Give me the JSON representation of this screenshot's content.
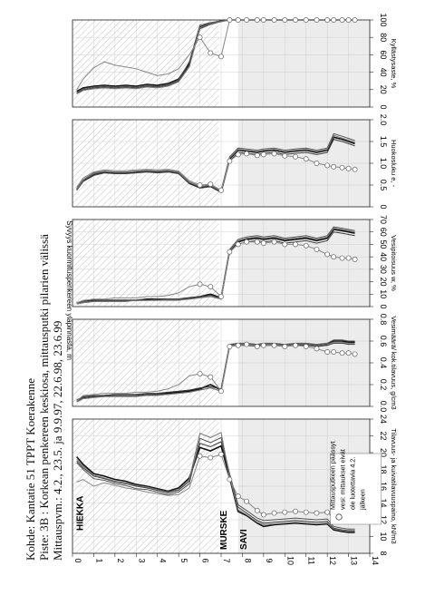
{
  "header": {
    "line1": "Kohde: Kantatie 51 TPPT Koerakenne",
    "line2": "Piste:  3B : Korkean penkereen keskiosa, mittausputki pilarien välissä",
    "line3": "Mittauspvm.: 4.2., 23.5. ja 9.9.97, 22.6.98, 23.6.99"
  },
  "depth_axis": {
    "label": "Syvyys kuormituspenkereen yläpinnasta, m",
    "ticks": [
      "0",
      "1",
      "2",
      "3",
      "4",
      "5",
      "6",
      "7",
      "8",
      "9",
      "10",
      "11",
      "12",
      "13",
      "14"
    ]
  },
  "layer_labels": {
    "hiekka": "HIEKKA",
    "murske": "MURSKE",
    "savi": "SAVI"
  },
  "annotation": [
    "Mittausputkeen päässyt",
    "vesi: mittaukset eivät",
    "ole luotettavia 4.2.",
    "jälkeen"
  ],
  "colors": {
    "series": [
      "#111111",
      "#3a3a3a",
      "#555555",
      "#777777",
      "#999999"
    ],
    "hatch": "#999999",
    "shade": "#ececec"
  },
  "chart_data": [
    {
      "type": "line",
      "xlabel": "Tilavuus- ja kuivatilavuuspaino, kN/m3",
      "xlim": [
        8,
        24
      ],
      "ticks": [
        "8",
        "10",
        "12",
        "14",
        "16",
        "18",
        "20",
        "22",
        "24"
      ],
      "depth": [
        0.2,
        0.5,
        1,
        1.5,
        2,
        2.5,
        3,
        3.5,
        4,
        4.5,
        5,
        5.5,
        6,
        6.5,
        7,
        7.4,
        7.8,
        8.2,
        8.7,
        9,
        9.5,
        10,
        10.5,
        11,
        11.5,
        12,
        12.3,
        12.7,
        13,
        13.3
      ],
      "series": [
        {
          "values": [
            19.5,
            18.6,
            17.5,
            17.2,
            16.8,
            16.6,
            16.2,
            16.0,
            15.7,
            15.4,
            15.8,
            17.0,
            20.6,
            20.2,
            20.8,
            17.0,
            13.0,
            12.5,
            11.6,
            11.2,
            11.4,
            11.5,
            11.6,
            11.5,
            11.4,
            11.5,
            10.8,
            10.6,
            10.5,
            10.5
          ]
        },
        {
          "values": [
            19.0,
            18.2,
            17.2,
            16.9,
            16.5,
            16.3,
            16.0,
            15.8,
            15.5,
            15.2,
            15.5,
            16.6,
            21.1,
            20.7,
            21.3,
            17.3,
            13.5,
            12.8,
            11.9,
            11.6,
            11.7,
            11.8,
            11.9,
            11.8,
            11.7,
            11.8,
            11.0,
            10.8,
            10.7,
            10.7
          ]
        },
        {
          "values": [
            18.8,
            18.0,
            16.9,
            16.7,
            16.3,
            16.1,
            15.7,
            15.6,
            15.3,
            15.0,
            15.3,
            16.3,
            21.7,
            21.2,
            21.8,
            17.5,
            13.8,
            13.1,
            12.2,
            11.9,
            12.0,
            12.1,
            12.2,
            12.1,
            12.0,
            12.1,
            11.2,
            11.0,
            10.9,
            10.9
          ]
        },
        {
          "values": [
            19.2,
            18.4,
            17.3,
            17.0,
            16.6,
            16.4,
            16.1,
            15.9,
            15.6,
            15.3,
            15.6,
            16.8,
            22.3,
            21.8,
            22.4,
            17.1,
            13.2,
            12.6,
            11.7,
            11.4,
            11.5,
            11.6,
            11.7,
            11.6,
            11.5,
            11.6,
            10.9,
            10.7,
            10.6,
            10.6
          ]
        },
        {
          "values": [
            16.5,
            16.8,
            16.0,
            16.4,
            16.1,
            15.8,
            15.6,
            15.3,
            15.1,
            14.9,
            15.0,
            15.8,
            19.6,
            19.4,
            19.8,
            16.8,
            14.8,
            14.2,
            13.1,
            12.6,
            12.8,
            12.9,
            13.0,
            12.9,
            12.8,
            12.9,
            12.2,
            12.0,
            11.9,
            11.9
          ]
        }
      ]
    },
    {
      "type": "line",
      "xlabel": "Vesimäärä/ kok.tilavuus, g/cm3",
      "xlim": [
        0.0,
        0.8
      ],
      "ticks": [
        "0.0",
        "0.2",
        "0.4",
        "0.6",
        "0.8"
      ],
      "depth": [
        0.2,
        0.5,
        1,
        1.5,
        2,
        2.5,
        3,
        3.5,
        4,
        4.5,
        5,
        5.5,
        6,
        6.5,
        7,
        7.4,
        7.8,
        8.2,
        8.7,
        9,
        9.5,
        10,
        10.5,
        11,
        11.5,
        12,
        12.3,
        12.7,
        13,
        13.3
      ],
      "series": [
        {
          "values": [
            0.05,
            0.08,
            0.09,
            0.1,
            0.1,
            0.1,
            0.1,
            0.11,
            0.11,
            0.12,
            0.13,
            0.14,
            0.16,
            0.2,
            0.15,
            0.56,
            0.57,
            0.57,
            0.56,
            0.57,
            0.57,
            0.56,
            0.57,
            0.57,
            0.56,
            0.57,
            0.6,
            0.6,
            0.59,
            0.59
          ]
        },
        {
          "values": [
            0.06,
            0.09,
            0.1,
            0.1,
            0.11,
            0.11,
            0.11,
            0.12,
            0.12,
            0.13,
            0.14,
            0.15,
            0.17,
            0.18,
            0.16,
            0.55,
            0.56,
            0.56,
            0.55,
            0.56,
            0.56,
            0.55,
            0.56,
            0.56,
            0.55,
            0.56,
            0.58,
            0.58,
            0.57,
            0.57
          ]
        },
        {
          "values": [
            0.05,
            0.08,
            0.09,
            0.09,
            0.1,
            0.1,
            0.1,
            0.11,
            0.11,
            0.11,
            0.12,
            0.13,
            0.15,
            0.17,
            0.14,
            0.57,
            0.58,
            0.58,
            0.57,
            0.58,
            0.58,
            0.57,
            0.58,
            0.58,
            0.57,
            0.58,
            0.61,
            0.61,
            0.6,
            0.6
          ]
        },
        {
          "values": [
            0.04,
            0.07,
            0.08,
            0.09,
            0.09,
            0.09,
            0.09,
            0.1,
            0.1,
            0.11,
            0.12,
            0.13,
            0.15,
            0.17,
            0.14,
            0.56,
            0.57,
            0.57,
            0.56,
            0.57,
            0.57,
            0.56,
            0.57,
            0.57,
            0.56,
            0.57,
            0.59,
            0.59,
            0.58,
            0.58
          ]
        },
        {
          "values": [
            0.05,
            0.1,
            0.11,
            0.12,
            0.12,
            0.12,
            0.13,
            0.13,
            0.14,
            0.16,
            0.2,
            0.28,
            0.3,
            0.27,
            0.14,
            0.55,
            0.56,
            0.57,
            0.55,
            0.56,
            0.56,
            0.55,
            0.56,
            0.55,
            0.53,
            0.5,
            0.5,
            0.49,
            0.49,
            0.48
          ]
        }
      ]
    },
    {
      "type": "line",
      "xlabel": "Vesipitoisuus w, %",
      "xlim": [
        0,
        70
      ],
      "ticks": [
        "0",
        "10",
        "20",
        "30",
        "40",
        "50",
        "60",
        "70"
      ],
      "depth": [
        0.2,
        0.5,
        1,
        1.5,
        2,
        2.5,
        3,
        3.5,
        4,
        4.5,
        5,
        5.5,
        6,
        6.5,
        7,
        7.4,
        7.8,
        8.2,
        8.7,
        9,
        9.5,
        10,
        10.5,
        11,
        11.5,
        12,
        12.3,
        12.7,
        13,
        13.3
      ],
      "series": [
        {
          "values": [
            3,
            4,
            5,
            5,
            5,
            5,
            5,
            6,
            6,
            6,
            6,
            7,
            8,
            10,
            7,
            45,
            52,
            54,
            55,
            54,
            55,
            53,
            54,
            55,
            53,
            55,
            62,
            61,
            60,
            59
          ]
        },
        {
          "values": [
            3,
            4,
            5,
            5,
            5,
            5,
            5,
            5,
            6,
            6,
            6,
            7,
            8,
            9,
            7,
            44,
            50,
            52,
            53,
            52,
            53,
            51,
            52,
            53,
            51,
            53,
            60,
            59,
            58,
            57
          ]
        },
        {
          "values": [
            3,
            4,
            4,
            5,
            5,
            5,
            5,
            5,
            5,
            6,
            6,
            6,
            7,
            9,
            6,
            46,
            54,
            56,
            57,
            56,
            57,
            55,
            56,
            57,
            55,
            57,
            64,
            63,
            62,
            61
          ]
        },
        {
          "values": [
            2,
            3,
            4,
            4,
            4,
            4,
            5,
            5,
            5,
            5,
            5,
            6,
            7,
            8,
            6,
            45,
            53,
            55,
            56,
            55,
            56,
            54,
            55,
            56,
            54,
            56,
            63,
            62,
            61,
            60
          ]
        },
        {
          "values": [
            3,
            5,
            6,
            6,
            7,
            7,
            7,
            8,
            8,
            9,
            11,
            16,
            18,
            16,
            8,
            44,
            50,
            52,
            52,
            51,
            52,
            50,
            50,
            49,
            46,
            42,
            40,
            39,
            39,
            38
          ]
        }
      ]
    },
    {
      "type": "line",
      "xlabel": "Huokosluku e, -",
      "xlim": [
        0.0,
        2.0
      ],
      "ticks": [
        "0",
        "0.5",
        "1.0",
        "1.5",
        "2.0"
      ],
      "depth": [
        0.2,
        0.5,
        1,
        1.5,
        2,
        2.5,
        3,
        3.5,
        4,
        4.5,
        5,
        5.5,
        6,
        6.5,
        7,
        7.4,
        7.8,
        8.2,
        8.7,
        9,
        9.5,
        10,
        10.5,
        11,
        11.5,
        12,
        12.3,
        12.7,
        13,
        13.3
      ],
      "series": [
        {
          "values": [
            0.4,
            0.6,
            0.75,
            0.8,
            0.78,
            0.78,
            0.8,
            0.82,
            0.8,
            0.82,
            0.78,
            0.55,
            0.45,
            0.48,
            0.35,
            1.1,
            1.3,
            1.28,
            1.25,
            1.28,
            1.3,
            1.25,
            1.28,
            1.3,
            1.25,
            1.3,
            1.6,
            1.55,
            1.5,
            1.45
          ]
        },
        {
          "values": [
            0.38,
            0.58,
            0.72,
            0.78,
            0.76,
            0.76,
            0.78,
            0.8,
            0.78,
            0.8,
            0.76,
            0.53,
            0.43,
            0.46,
            0.33,
            1.05,
            1.25,
            1.23,
            1.2,
            1.23,
            1.25,
            1.2,
            1.23,
            1.25,
            1.2,
            1.25,
            1.55,
            1.5,
            1.45,
            1.4
          ]
        },
        {
          "values": [
            0.42,
            0.62,
            0.78,
            0.82,
            0.8,
            0.8,
            0.82,
            0.84,
            0.82,
            0.84,
            0.8,
            0.57,
            0.47,
            0.5,
            0.37,
            1.15,
            1.35,
            1.33,
            1.3,
            1.33,
            1.35,
            1.3,
            1.33,
            1.35,
            1.3,
            1.35,
            1.68,
            1.62,
            1.57,
            1.52
          ]
        },
        {
          "values": [
            0.4,
            0.61,
            0.76,
            0.81,
            0.79,
            0.79,
            0.81,
            0.83,
            0.81,
            0.83,
            0.79,
            0.56,
            0.46,
            0.49,
            0.36,
            1.12,
            1.32,
            1.3,
            1.27,
            1.3,
            1.32,
            1.27,
            1.3,
            1.32,
            1.27,
            1.32,
            1.64,
            1.58,
            1.53,
            1.48
          ]
        },
        {
          "values": [
            0.45,
            0.66,
            0.8,
            0.85,
            0.83,
            0.83,
            0.85,
            0.86,
            0.85,
            0.86,
            0.82,
            0.6,
            0.5,
            0.52,
            0.38,
            1.05,
            1.2,
            1.22,
            1.18,
            1.2,
            1.22,
            1.17,
            1.15,
            1.1,
            1.0,
            0.95,
            0.92,
            0.9,
            0.88,
            0.86
          ]
        }
      ]
    },
    {
      "type": "line",
      "xlabel": "Kyllästysaste, %",
      "xlim": [
        0,
        100
      ],
      "ticks": [
        "0",
        "20",
        "40",
        "60",
        "80",
        "100"
      ],
      "depth": [
        0.2,
        0.5,
        1,
        1.5,
        2,
        2.5,
        3,
        3.5,
        4,
        4.5,
        5,
        5.5,
        6,
        6.5,
        7,
        7.4,
        7.8,
        8.2,
        8.7,
        9,
        9.5,
        10,
        10.5,
        11,
        11.5,
        12,
        12.3,
        12.7,
        13,
        13.3
      ],
      "series": [
        {
          "values": [
            18,
            22,
            24,
            25,
            24,
            25,
            24,
            26,
            25,
            27,
            32,
            50,
            92,
            96,
            99,
            100,
            100,
            100,
            100,
            100,
            100,
            100,
            100,
            100,
            100,
            100,
            100,
            100,
            100,
            100
          ]
        },
        {
          "values": [
            16,
            20,
            22,
            23,
            22,
            23,
            22,
            24,
            23,
            25,
            30,
            48,
            90,
            95,
            98,
            100,
            100,
            100,
            100,
            100,
            100,
            100,
            100,
            100,
            100,
            100,
            100,
            100,
            100,
            100
          ]
        },
        {
          "values": [
            17,
            21,
            23,
            24,
            23,
            24,
            23,
            25,
            24,
            26,
            31,
            52,
            94,
            97,
            99,
            100,
            100,
            100,
            100,
            100,
            100,
            100,
            100,
            100,
            100,
            100,
            100,
            100,
            100,
            100
          ]
        },
        {
          "values": [
            15,
            19,
            21,
            22,
            21,
            22,
            21,
            23,
            22,
            24,
            29,
            46,
            91,
            96,
            98,
            100,
            100,
            100,
            100,
            100,
            100,
            100,
            100,
            100,
            100,
            100,
            100,
            100,
            100,
            100
          ]
        },
        {
          "values": [
            20,
            32,
            45,
            52,
            48,
            46,
            44,
            40,
            36,
            38,
            44,
            60,
            80,
            62,
            58,
            100,
            100,
            100,
            100,
            100,
            100,
            100,
            100,
            100,
            100,
            100,
            100,
            100,
            100,
            100
          ]
        }
      ]
    }
  ]
}
